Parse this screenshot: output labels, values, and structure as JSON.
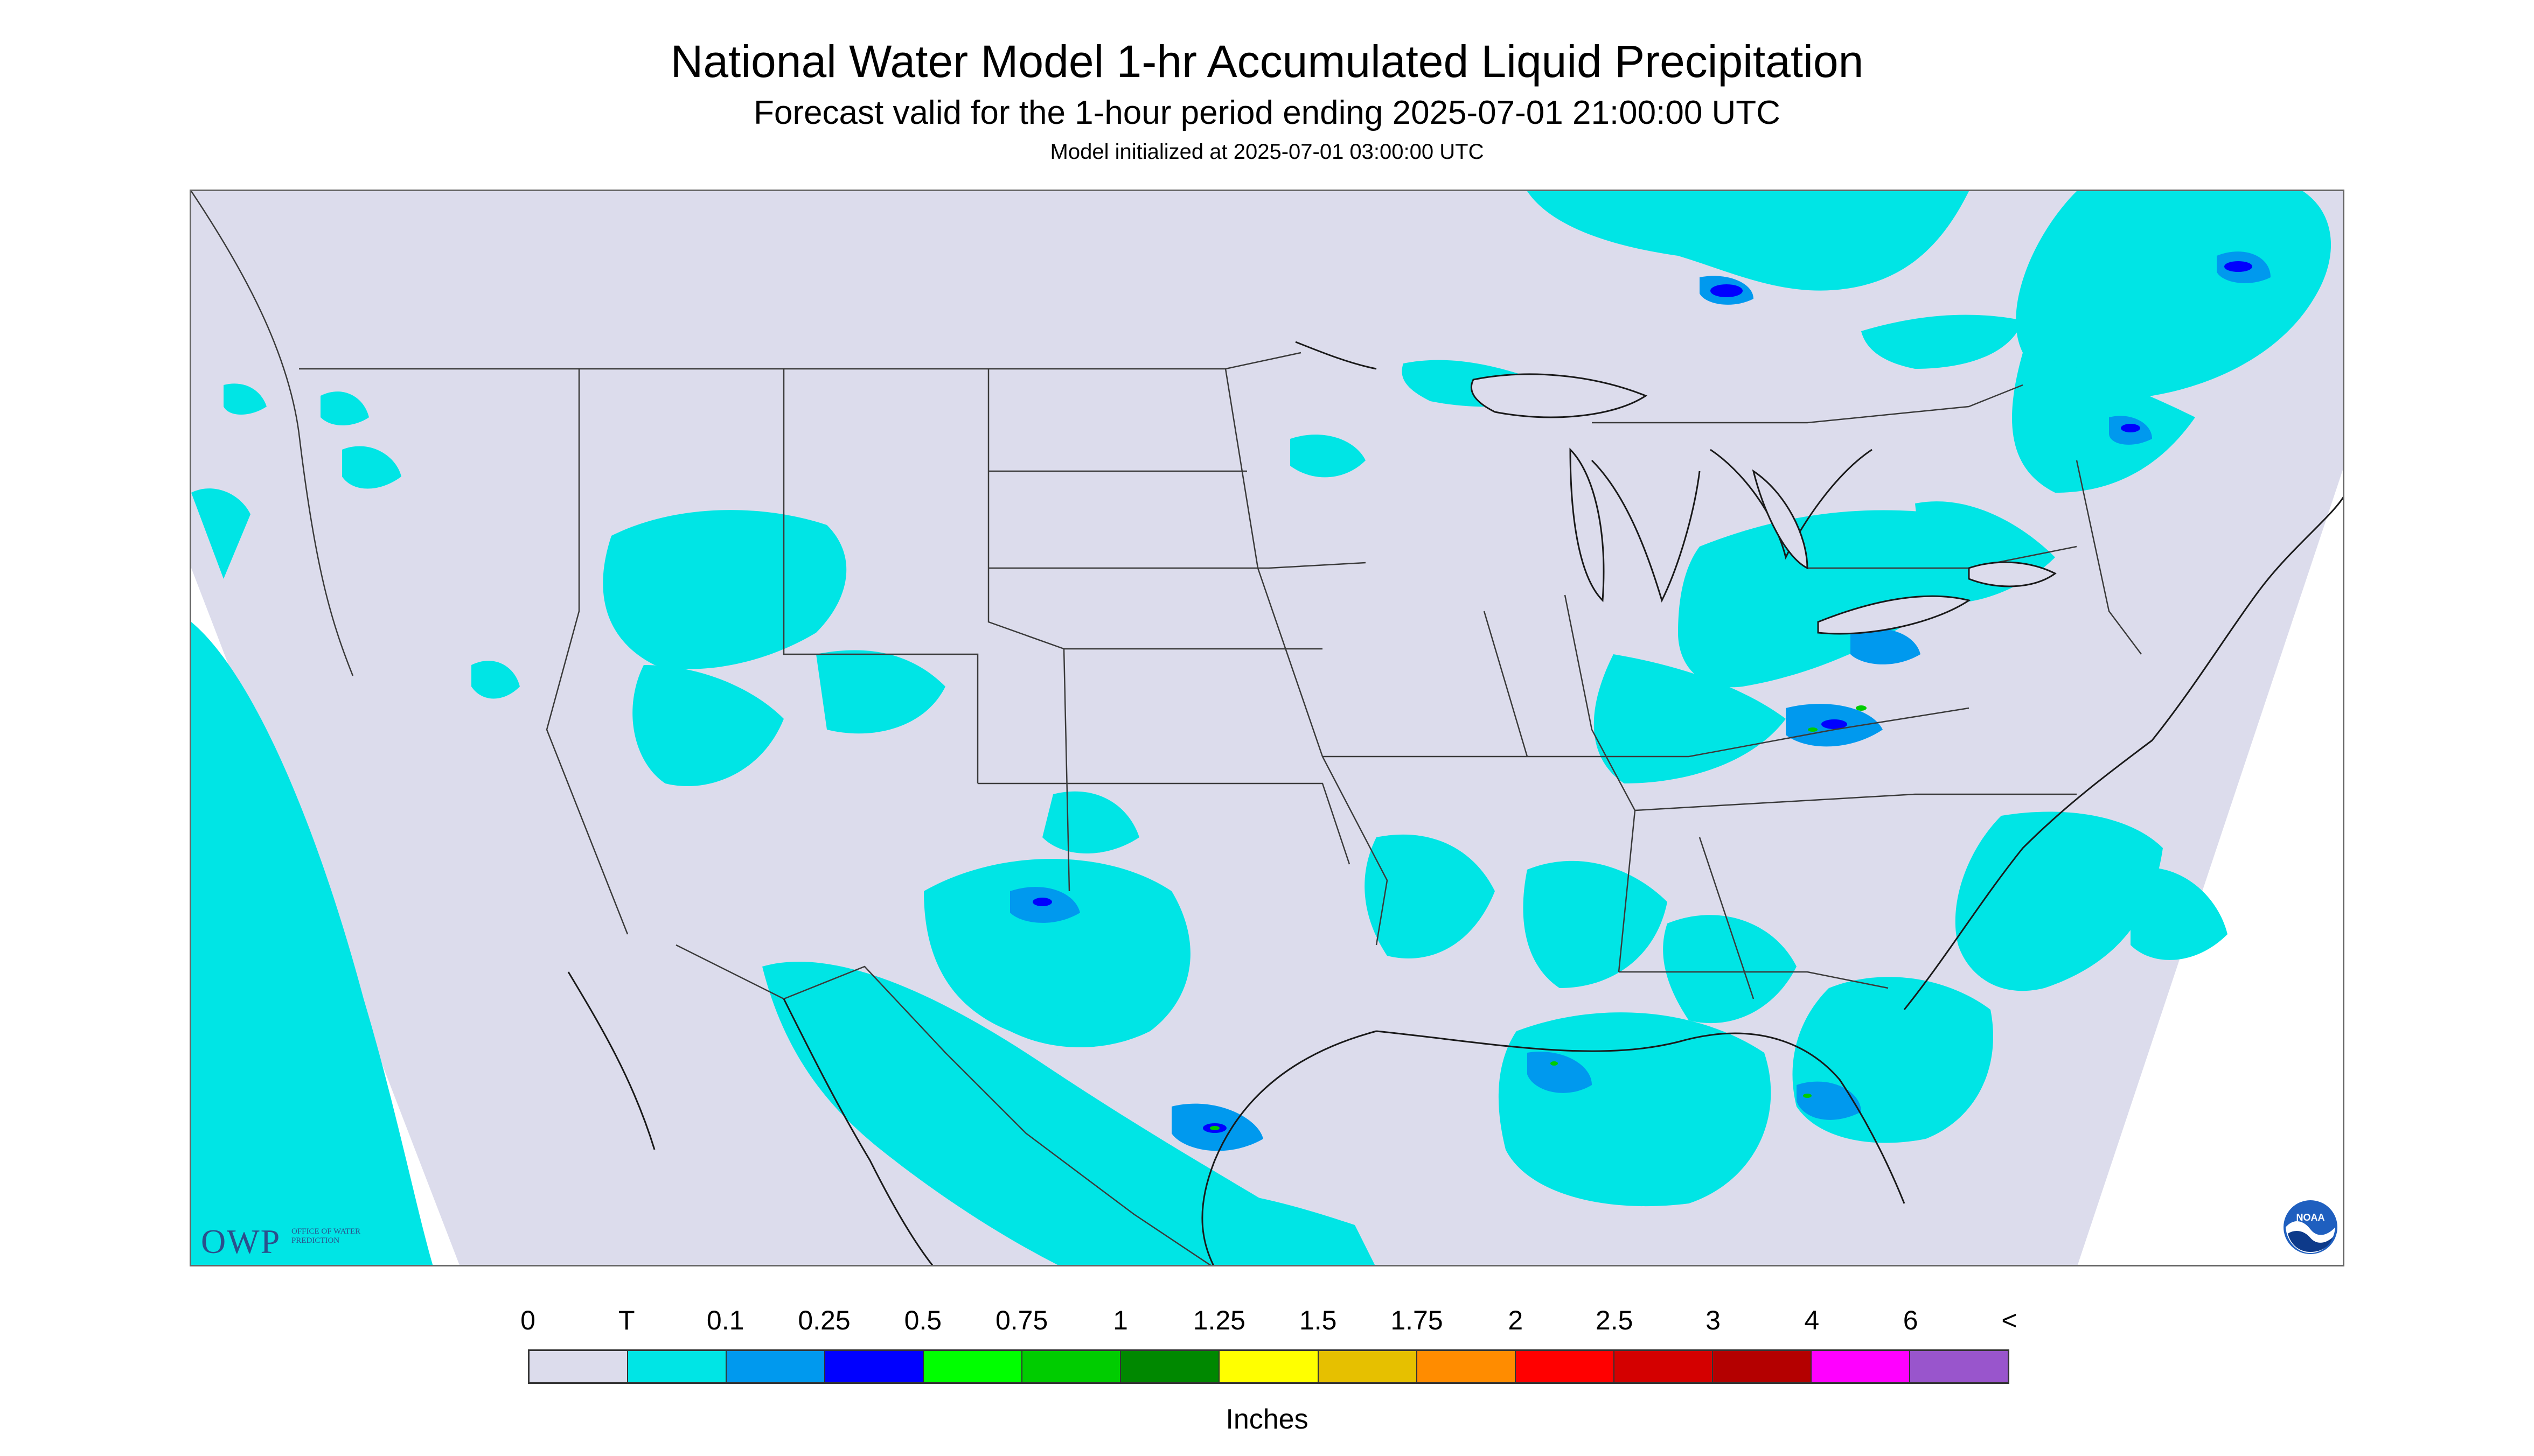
{
  "header": {
    "title": "National Water Model 1-hr Accumulated Liquid Precipitation",
    "subtitle": "Forecast valid for the 1-hour period ending 2025-07-01 21:00:00 UTC",
    "init": "Model initialized at 2025-07-01 03:00:00 UTC"
  },
  "map": {
    "background_color": "#dcdcec",
    "outside_color": "#ffffff",
    "boundary_color": "#3a3a3a"
  },
  "logos": {
    "owp_mark": "OWP",
    "owp_text": "OFFICE OF WATER PREDICTION",
    "noaa_text": "NOAA",
    "owp_icon": "owp-logo",
    "noaa_icon": "noaa-logo"
  },
  "legend": {
    "labels": [
      "0",
      "T",
      "0.1",
      "0.25",
      "0.5",
      "0.75",
      "1",
      "1.25",
      "1.5",
      "1.75",
      "2",
      "2.5",
      "3",
      "4",
      "6",
      "<"
    ],
    "colors": [
      "#dcdcec",
      "#00e5e5",
      "#0099ee",
      "#0000ff",
      "#00ff00",
      "#00cc00",
      "#008800",
      "#ffff00",
      "#e6c000",
      "#ff8c00",
      "#ff0000",
      "#d40000",
      "#b40000",
      "#ff00ff",
      "#9955cc"
    ],
    "units": "Inches"
  }
}
